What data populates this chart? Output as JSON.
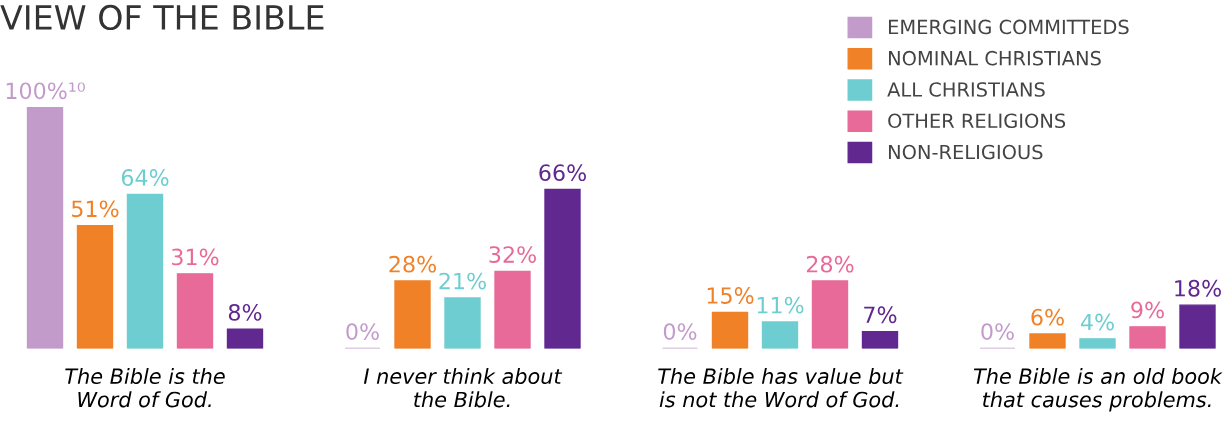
{
  "chart_data": {
    "type": "bar",
    "title": "VIEW OF THE BIBLE",
    "categories": [
      "The Bible is the\nWord of God.",
      "I never think about\nthe Bible.",
      "The Bible has value but\nis not the Word of God.",
      "The Bible is an old book\nthat causes problems."
    ],
    "series": [
      {
        "name": "EMERGING COMMITTEDS",
        "color": "#c29bcb",
        "values": [
          100,
          0,
          0,
          0
        ],
        "value_labels": [
          "100%¹⁰",
          "0%",
          "0%",
          "0%"
        ]
      },
      {
        "name": "NOMINAL CHRISTIANS",
        "color": "#f08127",
        "values": [
          51,
          28,
          15,
          6
        ],
        "value_labels": [
          "51%",
          "28%",
          "15%",
          "6%"
        ]
      },
      {
        "name": "ALL CHRISTIANS",
        "color": "#6ecdd0",
        "values": [
          64,
          21,
          11,
          4
        ],
        "value_labels": [
          "64%",
          "21%",
          "11%",
          "4%"
        ]
      },
      {
        "name": "OTHER RELIGIONS",
        "color": "#e76a98",
        "values": [
          31,
          32,
          28,
          9
        ],
        "value_labels": [
          "31%",
          "32%",
          "28%",
          "9%"
        ]
      },
      {
        "name": "NON-RELIGIOUS",
        "color": "#612890",
        "values": [
          8,
          66,
          7,
          18
        ],
        "value_labels": [
          "8%",
          "66%",
          "7%",
          "18%"
        ]
      }
    ],
    "legend": "top right",
    "grid": false,
    "tick_labels": "x"
  }
}
